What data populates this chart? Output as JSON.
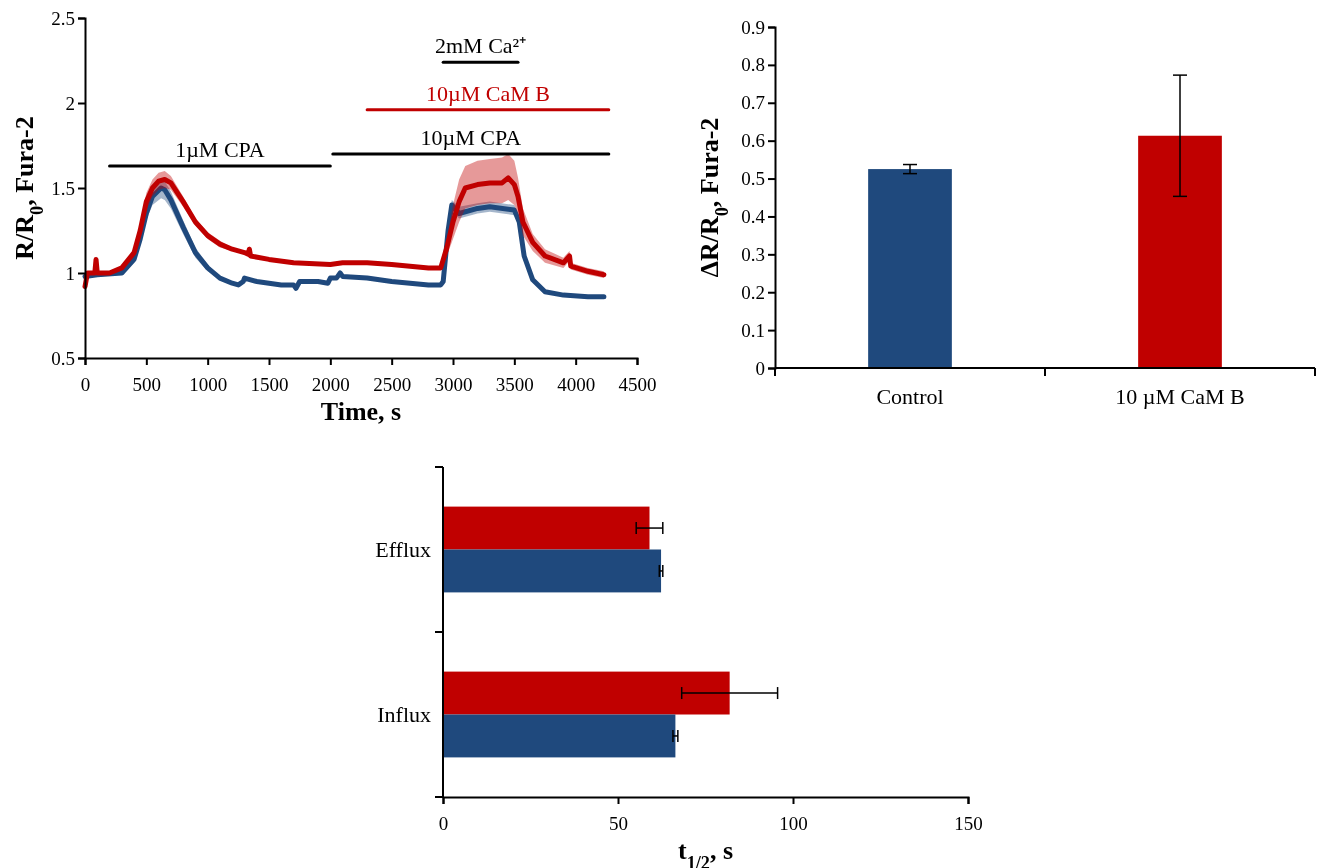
{
  "chart_data": [
    {
      "type": "line",
      "xlabel": "Time, s",
      "ylabel": "R/R$_{0}$, Fura-2",
      "xlim": [
        0,
        4500
      ],
      "xticks": [
        0,
        500,
        1000,
        1500,
        2000,
        2500,
        3000,
        3500,
        4000,
        4500
      ],
      "ylim": [
        0.5,
        2.5
      ],
      "yticks": [
        0.5,
        1,
        1.5,
        2,
        2.5
      ],
      "marker": "none",
      "line_style": "solid",
      "series": [
        {
          "color": "#1f497d",
          "x": [
            0,
            100,
            300,
            400,
            450,
            500,
            550,
            620,
            650,
            700,
            800,
            900,
            1000,
            1100,
            1200,
            1250,
            1290,
            1300,
            1400,
            1600,
            1700,
            1720,
            1750,
            1900,
            1980,
            2000,
            2050,
            2080,
            2100,
            2300,
            2500,
            2800,
            2900,
            2920,
            2960,
            2990,
            3050,
            3200,
            3300,
            3500,
            3540,
            3580,
            3650,
            3750,
            3900,
            4100,
            4230
          ],
          "values": [
            0.98,
            0.99,
            1.0,
            1.08,
            1.2,
            1.35,
            1.45,
            1.5,
            1.49,
            1.43,
            1.27,
            1.12,
            1.03,
            0.97,
            0.94,
            0.93,
            0.95,
            0.97,
            0.95,
            0.93,
            0.93,
            0.91,
            0.95,
            0.95,
            0.94,
            0.97,
            0.97,
            1.0,
            0.98,
            0.97,
            0.95,
            0.93,
            0.93,
            0.95,
            1.25,
            1.4,
            1.35,
            1.38,
            1.39,
            1.37,
            1.3,
            1.1,
            0.96,
            0.89,
            0.87,
            0.86,
            0.86
          ],
          "lower": [
            0.97,
            0.98,
            0.99,
            1.06,
            1.17,
            1.31,
            1.4,
            1.44,
            1.43,
            1.38,
            1.23,
            1.09,
            1.01,
            0.96,
            0.93,
            0.92,
            0.94,
            0.96,
            0.94,
            0.92,
            0.92,
            0.9,
            0.94,
            0.94,
            0.93,
            0.96,
            0.96,
            0.99,
            0.97,
            0.96,
            0.94,
            0.92,
            0.92,
            0.94,
            1.22,
            1.37,
            1.32,
            1.35,
            1.36,
            1.34,
            1.27,
            1.08,
            0.95,
            0.88,
            0.86,
            0.85,
            0.85
          ],
          "upper": [
            0.99,
            1.0,
            1.01,
            1.1,
            1.23,
            1.39,
            1.5,
            1.55,
            1.54,
            1.48,
            1.31,
            1.15,
            1.05,
            0.98,
            0.95,
            0.94,
            0.96,
            0.98,
            0.96,
            0.94,
            0.94,
            0.92,
            0.96,
            0.96,
            0.95,
            0.98,
            0.98,
            1.01,
            0.99,
            0.98,
            0.96,
            0.94,
            0.94,
            0.96,
            1.28,
            1.43,
            1.39,
            1.41,
            1.42,
            1.4,
            1.33,
            1.12,
            0.97,
            0.9,
            0.88,
            0.87,
            0.87
          ]
        },
        {
          "color": "#c00000",
          "x": [
            0,
            20,
            80,
            90,
            100,
            200,
            300,
            400,
            450,
            500,
            550,
            600,
            650,
            700,
            800,
            900,
            1000,
            1100,
            1200,
            1300,
            1330,
            1340,
            1350,
            1500,
            1700,
            2000,
            2100,
            2300,
            2500,
            2800,
            2900,
            2950,
            3000,
            3050,
            3100,
            3200,
            3300,
            3400,
            3450,
            3500,
            3530,
            3570,
            3650,
            3750,
            3900,
            3950,
            3960,
            4100,
            4230
          ],
          "values": [
            0.92,
            1.0,
            1.0,
            1.08,
            1.0,
            1.0,
            1.03,
            1.12,
            1.25,
            1.42,
            1.5,
            1.54,
            1.55,
            1.53,
            1.42,
            1.3,
            1.22,
            1.17,
            1.14,
            1.12,
            1.11,
            1.14,
            1.1,
            1.08,
            1.06,
            1.05,
            1.06,
            1.06,
            1.05,
            1.03,
            1.03,
            1.15,
            1.3,
            1.42,
            1.5,
            1.52,
            1.53,
            1.53,
            1.56,
            1.52,
            1.45,
            1.3,
            1.18,
            1.1,
            1.06,
            1.1,
            1.04,
            1.01,
            0.99
          ],
          "lower": [
            0.9,
            0.99,
            0.99,
            1.06,
            0.99,
            0.99,
            1.02,
            1.1,
            1.21,
            1.37,
            1.45,
            1.49,
            1.5,
            1.49,
            1.39,
            1.28,
            1.2,
            1.15,
            1.13,
            1.11,
            1.1,
            1.12,
            1.09,
            1.07,
            1.05,
            1.04,
            1.05,
            1.05,
            1.04,
            1.02,
            1.02,
            1.1,
            1.2,
            1.3,
            1.38,
            1.4,
            1.41,
            1.41,
            1.43,
            1.4,
            1.35,
            1.22,
            1.13,
            1.06,
            1.03,
            1.07,
            1.02,
            0.99,
            0.97
          ],
          "upper": [
            0.94,
            1.01,
            1.01,
            1.1,
            1.01,
            1.01,
            1.04,
            1.14,
            1.29,
            1.47,
            1.55,
            1.59,
            1.6,
            1.57,
            1.45,
            1.32,
            1.24,
            1.19,
            1.15,
            1.13,
            1.12,
            1.16,
            1.11,
            1.09,
            1.07,
            1.06,
            1.07,
            1.07,
            1.06,
            1.04,
            1.04,
            1.2,
            1.4,
            1.55,
            1.63,
            1.66,
            1.67,
            1.68,
            1.7,
            1.66,
            1.56,
            1.38,
            1.23,
            1.14,
            1.09,
            1.13,
            1.06,
            1.03,
            1.01
          ]
        },
        {
          "name": "1µM CPA",
          "color": "#000000",
          "x": [
            200,
            2000
          ],
          "values": [
            1.63,
            1.63
          ]
        },
        {
          "name": "10µM CPA",
          "color": "#000000",
          "x": [
            2020,
            4270
          ],
          "values": [
            1.7,
            1.7
          ]
        },
        {
          "name": "10µM CaM B",
          "color": "#c00000",
          "x": [
            2300,
            4270
          ],
          "values": [
            1.96,
            1.96
          ]
        },
        {
          "name": "2mM Ca²⁺",
          "color": "#000000",
          "x": [
            2920,
            3530
          ],
          "values": [
            2.24,
            2.24
          ]
        }
      ]
    },
    {
      "type": "bar",
      "ylabel": "ΔR/R$_{0}$, Fura-2",
      "categories": [
        "Control",
        "10 µM CaM B"
      ],
      "values": [
        0.525,
        0.613
      ],
      "errors": [
        0.012,
        0.16
      ],
      "colors": [
        "#1f497d",
        "#c00000"
      ],
      "ylim": [
        0,
        0.9
      ],
      "yticks": [
        0,
        0.1,
        0.2,
        0.3,
        0.4,
        0.5,
        0.6,
        0.7,
        0.8,
        0.9
      ]
    },
    {
      "type": "bar",
      "orientation": "horizontal",
      "xlabel": "t$_{1/2}$, s",
      "categories": [
        "Efflux",
        "Influx"
      ],
      "xlim": [
        0,
        150
      ],
      "xticks": [
        0,
        50,
        100,
        150
      ],
      "series": [
        {
          "color": "#c00000",
          "values": [
            59,
            81.9
          ],
          "errors": [
            3.8,
            13.7
          ]
        },
        {
          "color": "#1f497d",
          "values": [
            62.3,
            66.4
          ],
          "errors": [
            0.5,
            0.7
          ]
        }
      ]
    }
  ]
}
